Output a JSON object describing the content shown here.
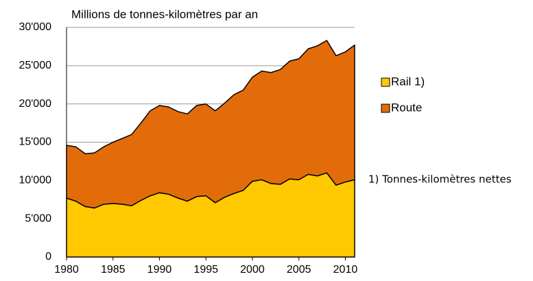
{
  "chart_data": {
    "type": "stacked_area",
    "title": "Millions de tonnes-kilomètres par an",
    "note": "1) Tonnes-kilomètres nettes",
    "x": [
      1980,
      1981,
      1982,
      1983,
      1984,
      1985,
      1986,
      1987,
      1988,
      1989,
      1990,
      1991,
      1992,
      1993,
      1994,
      1995,
      1996,
      1997,
      1998,
      1999,
      2000,
      2001,
      2002,
      2003,
      2004,
      2005,
      2006,
      2007,
      2008,
      2009,
      2010,
      2011
    ],
    "series": [
      {
        "name": "Rail 1)",
        "color": "#ffc800",
        "values": [
          7700,
          7300,
          6600,
          6400,
          6900,
          7000,
          6900,
          6700,
          7400,
          8000,
          8400,
          8200,
          7700,
          7300,
          7900,
          8000,
          7100,
          7800,
          8300,
          8700,
          9900,
          10100,
          9600,
          9500,
          10200,
          10100,
          10800,
          10600,
          11000,
          9400,
          9800,
          10100
        ]
      },
      {
        "name": "Route",
        "color": "#e36c0a",
        "values": [
          6900,
          7100,
          6900,
          7200,
          7500,
          8000,
          8600,
          9300,
          10100,
          11100,
          11400,
          11400,
          11300,
          11400,
          11900,
          12000,
          12000,
          12300,
          12900,
          13100,
          13600,
          14200,
          14500,
          15000,
          15400,
          15800,
          16400,
          17000,
          17300,
          16900,
          17000,
          17600
        ]
      }
    ],
    "xlim": [
      1980,
      2011
    ],
    "xticks": [
      1980,
      1985,
      1990,
      1995,
      2000,
      2005,
      2010
    ],
    "ylim": [
      0,
      30000
    ],
    "yticks": [
      0,
      {
        "value": 5000,
        "label": "5'000"
      },
      {
        "value": 10000,
        "label": "10'000"
      },
      {
        "value": 15000,
        "label": "15'000"
      },
      {
        "value": 20000,
        "label": "20'000"
      },
      {
        "value": 25000,
        "label": "25'000"
      },
      {
        "value": 30000,
        "label": "30'000"
      }
    ],
    "grid": true,
    "legend": "right"
  }
}
